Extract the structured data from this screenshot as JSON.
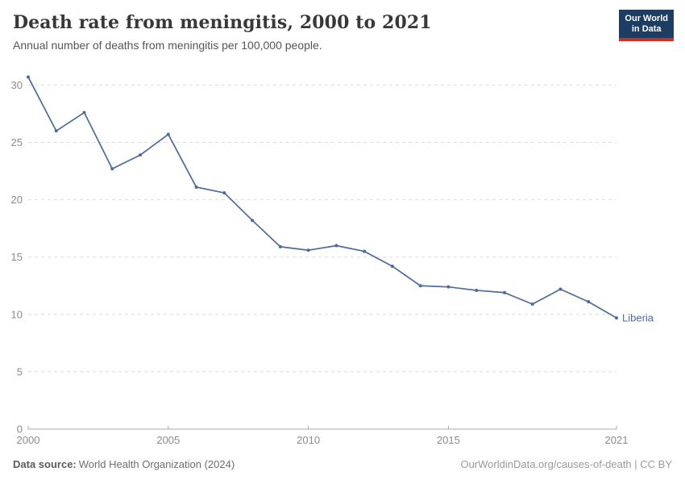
{
  "header": {
    "title": "Death rate from meningitis, 2000 to 2021",
    "subtitle": "Annual number of deaths from meningitis per 100,000 people.",
    "logo": {
      "line1": "Our World",
      "line2": "in Data"
    }
  },
  "chart_data": {
    "type": "line",
    "title": "Death rate from meningitis, 2000 to 2021",
    "subtitle": "Annual number of deaths from meningitis per 100,000 people.",
    "xlabel": "",
    "ylabel": "",
    "xlim": [
      2000,
      2021
    ],
    "ylim": [
      0,
      31
    ],
    "x_ticks": [
      2000,
      2005,
      2010,
      2015,
      2021
    ],
    "y_ticks": [
      0,
      5,
      10,
      15,
      20,
      25,
      30
    ],
    "grid": "horizontal-dashed",
    "legend_position": "end-of-line-label",
    "series": [
      {
        "name": "Liberia",
        "color": "#4c6a9c",
        "x": [
          2000,
          2001,
          2002,
          2003,
          2004,
          2005,
          2006,
          2007,
          2008,
          2009,
          2010,
          2011,
          2012,
          2013,
          2014,
          2015,
          2016,
          2017,
          2018,
          2019,
          2020,
          2021
        ],
        "values": [
          30.7,
          26.0,
          27.6,
          22.7,
          23.9,
          25.7,
          21.1,
          20.6,
          18.2,
          15.9,
          15.6,
          16.0,
          15.5,
          14.2,
          12.5,
          12.4,
          12.1,
          11.9,
          10.9,
          12.2,
          11.1,
          9.7
        ]
      }
    ]
  },
  "footer": {
    "source_label": "Data source:",
    "source_value": "World Health Organization (2024)",
    "link": "OurWorldinData.org/causes-of-death | CC BY"
  },
  "colors": {
    "line": "#4c6a9c",
    "grid": "#dcdcdc",
    "axis": "#a8a8a8",
    "tick_label": "#8b8b8b",
    "title": "#383838",
    "subtitle": "#555555",
    "logo_bg": "#1d3d63",
    "logo_stripe": "#d42b21"
  }
}
